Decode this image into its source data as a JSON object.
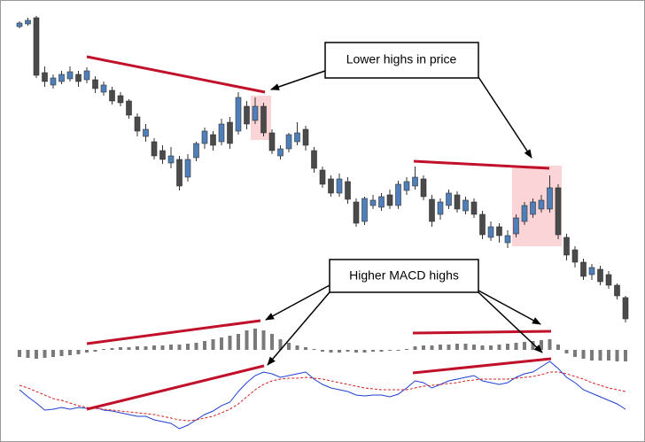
{
  "chart_data": [
    {
      "type": "candlestick",
      "up_color": "#4f7fb8",
      "down_color": "#4a4a4a",
      "ylim": [
        -10,
        360
      ],
      "open": [
        330,
        333,
        340,
        278,
        264,
        268,
        271,
        276,
        270,
        270,
        256,
        258,
        252,
        246,
        228,
        206,
        200,
        190,
        176,
        180,
        160,
        182,
        198,
        208,
        200,
        222,
        212,
        240,
        224,
        240,
        210,
        184,
        192,
        200,
        214,
        190,
        168,
        158,
        142,
        155,
        132,
        110,
        128,
        126,
        140,
        128,
        145,
        150,
        158,
        135,
        118,
        128,
        140,
        122,
        132,
        118,
        92,
        104,
        86,
        96,
        110,
        118,
        124,
        124,
        148,
        92,
        78,
        64,
        50,
        56,
        50,
        38,
        24
      ],
      "high": [
        336,
        340,
        342,
        285,
        276,
        280,
        285,
        280,
        284,
        274,
        268,
        262,
        256,
        248,
        232,
        220,
        204,
        196,
        194,
        184,
        186,
        200,
        216,
        212,
        226,
        228,
        256,
        246,
        250,
        244,
        214,
        196,
        210,
        222,
        218,
        194,
        172,
        162,
        164,
        160,
        136,
        138,
        140,
        142,
        146,
        156,
        160,
        172,
        162,
        140,
        136,
        146,
        144,
        138,
        136,
        122,
        110,
        108,
        100,
        118,
        132,
        136,
        140,
        162,
        152,
        96,
        82,
        68,
        62,
        60,
        54,
        40,
        26
      ],
      "low": [
        328,
        331,
        272,
        262,
        260,
        265,
        268,
        262,
        266,
        255,
        252,
        242,
        240,
        226,
        206,
        200,
        180,
        175,
        170,
        145,
        155,
        178,
        192,
        190,
        196,
        192,
        208,
        214,
        220,
        206,
        186,
        180,
        188,
        196,
        190,
        165,
        148,
        138,
        138,
        130,
        104,
        106,
        124,
        122,
        124,
        124,
        140,
        146,
        134,
        104,
        112,
        124,
        120,
        118,
        114,
        90,
        88,
        86,
        80,
        92,
        106,
        114,
        120,
        120,
        90,
        66,
        58,
        44,
        44,
        38,
        34,
        22,
        -4
      ],
      "close": [
        334,
        337,
        275,
        268,
        272,
        276,
        279,
        268,
        280,
        260,
        264,
        246,
        244,
        230,
        212,
        214,
        184,
        180,
        184,
        150,
        180,
        198,
        212,
        196,
        220,
        198,
        250,
        220,
        240,
        210,
        190,
        192,
        208,
        210,
        196,
        170,
        152,
        142,
        158,
        135,
        108,
        136,
        134,
        138,
        128,
        152,
        155,
        160,
        138,
        110,
        132,
        142,
        124,
        134,
        118,
        95,
        104,
        94,
        94,
        114,
        128,
        132,
        134,
        148,
        95,
        72,
        64,
        48,
        58,
        42,
        38,
        26,
        0
      ]
    },
    {
      "type": "bar",
      "color": "#7a7a7a",
      "ylim": [
        -30,
        30
      ],
      "values": [
        -8,
        -9,
        -10,
        -9,
        -8,
        -7,
        -6,
        -5,
        -3,
        -2,
        1,
        2,
        3,
        3,
        4,
        4,
        5,
        5,
        6,
        6,
        7,
        8,
        10,
        12,
        14,
        16,
        18,
        22,
        24,
        22,
        18,
        12,
        8,
        5,
        3,
        1,
        -2,
        -3,
        -3,
        -2,
        -3,
        -3,
        -2,
        -2,
        -1,
        -1,
        1,
        4,
        5,
        5,
        6,
        6,
        7,
        7,
        6,
        5,
        5,
        6,
        7,
        8,
        9,
        10,
        11,
        12,
        6,
        -4,
        -8,
        -10,
        -12,
        -12,
        -12,
        -13,
        -13
      ]
    },
    {
      "type": "line",
      "ylim": [
        -10,
        75
      ],
      "series": [
        {
          "color": "#1f3fd0",
          "values": [
            40,
            32,
            25,
            17,
            18,
            20,
            18,
            20,
            19,
            20,
            17,
            16,
            14,
            12,
            10,
            10,
            6,
            4,
            2,
            -4,
            0,
            6,
            12,
            16,
            22,
            26,
            38,
            48,
            56,
            60,
            58,
            54,
            56,
            58,
            60,
            52,
            46,
            42,
            40,
            38,
            34,
            33,
            34,
            34,
            32,
            35,
            42,
            50,
            48,
            42,
            46,
            50,
            52,
            54,
            56,
            50,
            48,
            46,
            48,
            54,
            58,
            60,
            66,
            72,
            64,
            54,
            48,
            40,
            36,
            32,
            28,
            24,
            18
          ]
        },
        {
          "color": "#d42020",
          "dashed": true,
          "values": [
            45,
            42,
            38,
            34,
            30,
            28,
            25,
            22,
            20,
            19,
            18,
            17,
            16,
            15,
            14,
            13,
            12,
            10,
            8,
            6,
            5,
            6,
            8,
            10,
            14,
            18,
            24,
            32,
            40,
            46,
            50,
            52,
            53,
            53,
            54,
            53,
            52,
            50,
            48,
            46,
            44,
            42,
            41,
            40,
            40,
            40,
            40,
            42,
            44,
            45,
            46,
            47,
            48,
            50,
            51,
            52,
            52,
            52,
            52,
            53,
            54,
            55,
            57,
            60,
            60,
            58,
            55,
            52,
            48,
            45,
            42,
            40,
            38
          ]
        }
      ]
    }
  ],
  "annotations": [
    "Lower highs in price",
    "Higher MACD highs"
  ]
}
